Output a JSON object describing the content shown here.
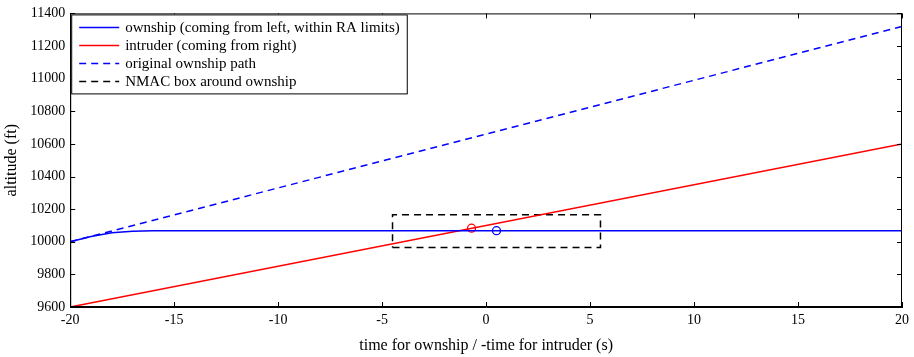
{
  "chart_data": {
    "type": "line",
    "xlabel": "time for ownship / -time for intruder (s)",
    "ylabel": "altitude (ft)",
    "xlim": [
      -20,
      20
    ],
    "xticks": [
      -20,
      -15,
      -10,
      -5,
      0,
      5,
      10,
      15,
      20
    ],
    "ylim": [
      9600,
      11400
    ],
    "yticks": [
      9600,
      9800,
      10000,
      10200,
      10400,
      10600,
      10800,
      11000,
      11200,
      11400
    ],
    "grid": false,
    "legend": "upper left",
    "series": [
      {
        "name": "ownship (coming from left, within RA limits)",
        "color": "#0000ff",
        "line_style": "solid",
        "marker": "circle",
        "x": [
          -20,
          -19,
          -18,
          -17,
          -16,
          20
        ],
        "values": [
          10000,
          10032,
          10055,
          10065,
          10068,
          10068
        ],
        "closest_point": {
          "x": 0.5,
          "y": 10068
        }
      },
      {
        "name": "intruder (coming from right)",
        "color": "#ff0000",
        "line_style": "solid",
        "marker": "circle",
        "x": [
          -20,
          20
        ],
        "values": [
          9600,
          10600
        ],
        "closest_point": {
          "x": -0.7,
          "y": 10083
        }
      },
      {
        "name": "original ownship path",
        "color": "#0000ff",
        "line_style": "dashed",
        "x": [
          -20,
          20
        ],
        "values": [
          10000,
          11320
        ]
      },
      {
        "name": "NMAC box around ownship",
        "color": "#000000",
        "line_style": "dashed",
        "x": [
          -4.5,
          5.5,
          5.5,
          -4.5,
          -4.5
        ],
        "values": [
          9965,
          9965,
          10165,
          10165,
          9965
        ]
      }
    ]
  }
}
